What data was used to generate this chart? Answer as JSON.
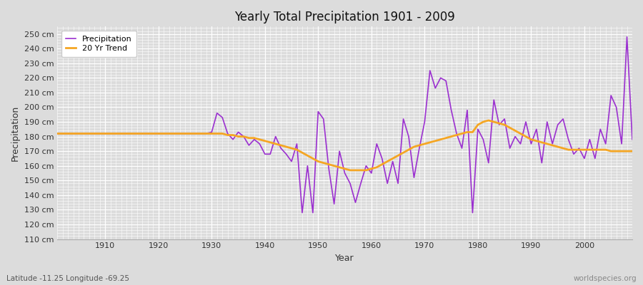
{
  "title": "Yearly Total Precipitation 1901 - 2009",
  "xlabel": "Year",
  "ylabel": "Precipitation",
  "lat_lon_label": "Latitude -11.25 Longitude -69.25",
  "watermark": "worldspecies.org",
  "precip_color": "#9b30d0",
  "trend_color": "#f5a623",
  "background_color": "#dcdcdc",
  "grid_color": "#ffffff",
  "ylim": [
    110,
    255
  ],
  "xlim": [
    1901,
    2009
  ],
  "ytick_step": 10,
  "xticks": [
    1910,
    1920,
    1930,
    1940,
    1950,
    1960,
    1970,
    1980,
    1990,
    2000
  ],
  "years": [
    1901,
    1902,
    1903,
    1904,
    1905,
    1906,
    1907,
    1908,
    1909,
    1910,
    1911,
    1912,
    1913,
    1914,
    1915,
    1916,
    1917,
    1918,
    1919,
    1920,
    1921,
    1922,
    1923,
    1924,
    1925,
    1926,
    1927,
    1928,
    1929,
    1930,
    1931,
    1932,
    1933,
    1934,
    1935,
    1936,
    1937,
    1938,
    1939,
    1940,
    1941,
    1942,
    1943,
    1944,
    1945,
    1946,
    1947,
    1948,
    1949,
    1950,
    1951,
    1952,
    1953,
    1954,
    1955,
    1956,
    1957,
    1958,
    1959,
    1960,
    1961,
    1962,
    1963,
    1964,
    1965,
    1966,
    1967,
    1968,
    1969,
    1970,
    1971,
    1972,
    1973,
    1974,
    1975,
    1976,
    1977,
    1978,
    1979,
    1980,
    1981,
    1982,
    1983,
    1984,
    1985,
    1986,
    1987,
    1988,
    1989,
    1990,
    1991,
    1992,
    1993,
    1994,
    1995,
    1996,
    1997,
    1998,
    1999,
    2000,
    2001,
    2002,
    2003,
    2004,
    2005,
    2006,
    2007,
    2008,
    2009
  ],
  "precipitation": [
    182,
    182,
    182,
    182,
    182,
    182,
    182,
    182,
    182,
    182,
    182,
    182,
    182,
    182,
    182,
    182,
    182,
    182,
    182,
    182,
    182,
    182,
    182,
    182,
    182,
    182,
    182,
    182,
    182,
    183,
    196,
    193,
    182,
    178,
    183,
    180,
    174,
    178,
    175,
    168,
    168,
    180,
    172,
    168,
    163,
    175,
    128,
    160,
    128,
    197,
    192,
    158,
    134,
    170,
    155,
    148,
    135,
    148,
    160,
    155,
    175,
    165,
    148,
    163,
    148,
    192,
    180,
    152,
    172,
    190,
    225,
    213,
    220,
    218,
    198,
    182,
    172,
    198,
    128,
    185,
    178,
    162,
    205,
    188,
    192,
    172,
    180,
    175,
    190,
    175,
    185,
    162,
    190,
    175,
    188,
    192,
    178,
    168,
    172,
    165,
    178,
    165,
    185,
    175,
    208,
    200,
    175,
    248,
    178
  ],
  "trend": [
    182,
    182,
    182,
    182,
    182,
    182,
    182,
    182,
    182,
    182,
    182,
    182,
    182,
    182,
    182,
    182,
    182,
    182,
    182,
    182,
    182,
    182,
    182,
    182,
    182,
    182,
    182,
    182,
    182,
    182,
    182,
    182,
    181,
    181,
    180,
    180,
    179,
    179,
    178,
    177,
    176,
    175,
    174,
    173,
    172,
    171,
    169,
    167,
    165,
    163,
    162,
    161,
    160,
    159,
    158,
    157,
    157,
    157,
    157,
    158,
    159,
    161,
    163,
    165,
    167,
    169,
    171,
    173,
    174,
    175,
    176,
    177,
    178,
    179,
    180,
    181,
    182,
    183,
    183,
    188,
    190,
    191,
    190,
    189,
    188,
    186,
    184,
    182,
    180,
    178,
    177,
    176,
    175,
    174,
    173,
    172,
    171,
    171,
    171,
    171,
    171,
    171,
    171,
    171,
    170,
    170,
    170,
    170,
    170
  ]
}
